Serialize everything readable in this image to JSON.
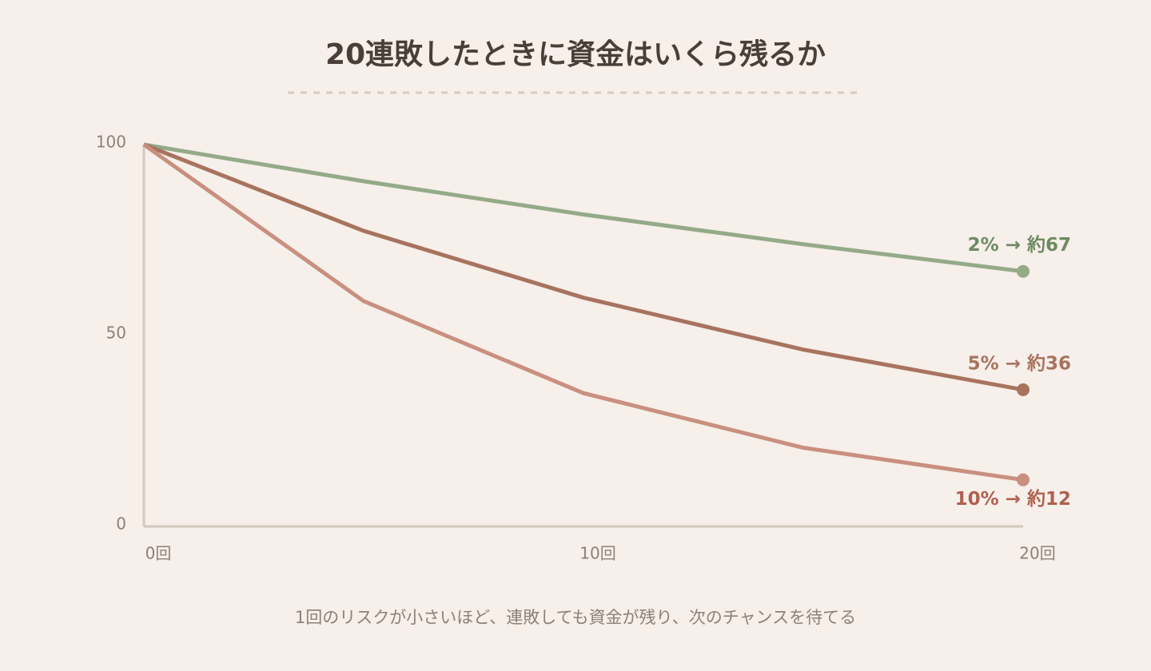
{
  "chart_data": {
    "type": "line",
    "title": "20連敗したときに資金はいくら残るか",
    "caption": "1回のリスクが小さいほど、連敗しても資金が残り、次のチャンスを待てる",
    "x": [
      0,
      5,
      10,
      15,
      20
    ],
    "xlim": [
      0,
      20
    ],
    "xticks": [
      {
        "value": 0,
        "label": "0回"
      },
      {
        "value": 10,
        "label": "10回"
      },
      {
        "value": 20,
        "label": "20回"
      }
    ],
    "ylim": [
      0,
      100
    ],
    "yticks": [
      0,
      50,
      100
    ],
    "series": [
      {
        "name": "2% → 約67",
        "color": "#94aa88",
        "label_color": "#6e8a63",
        "values": [
          100,
          90.4,
          81.7,
          73.9,
          66.8
        ]
      },
      {
        "name": "5% → 約36",
        "color": "#a8735e",
        "label_color": "#a8735e",
        "values": [
          100,
          77.4,
          59.9,
          46.3,
          35.8
        ]
      },
      {
        "name": "10% → 約12",
        "color": "#c98f7f",
        "label_color": "#b0614f",
        "values": [
          100,
          59.0,
          34.9,
          20.6,
          12.2
        ]
      }
    ]
  }
}
